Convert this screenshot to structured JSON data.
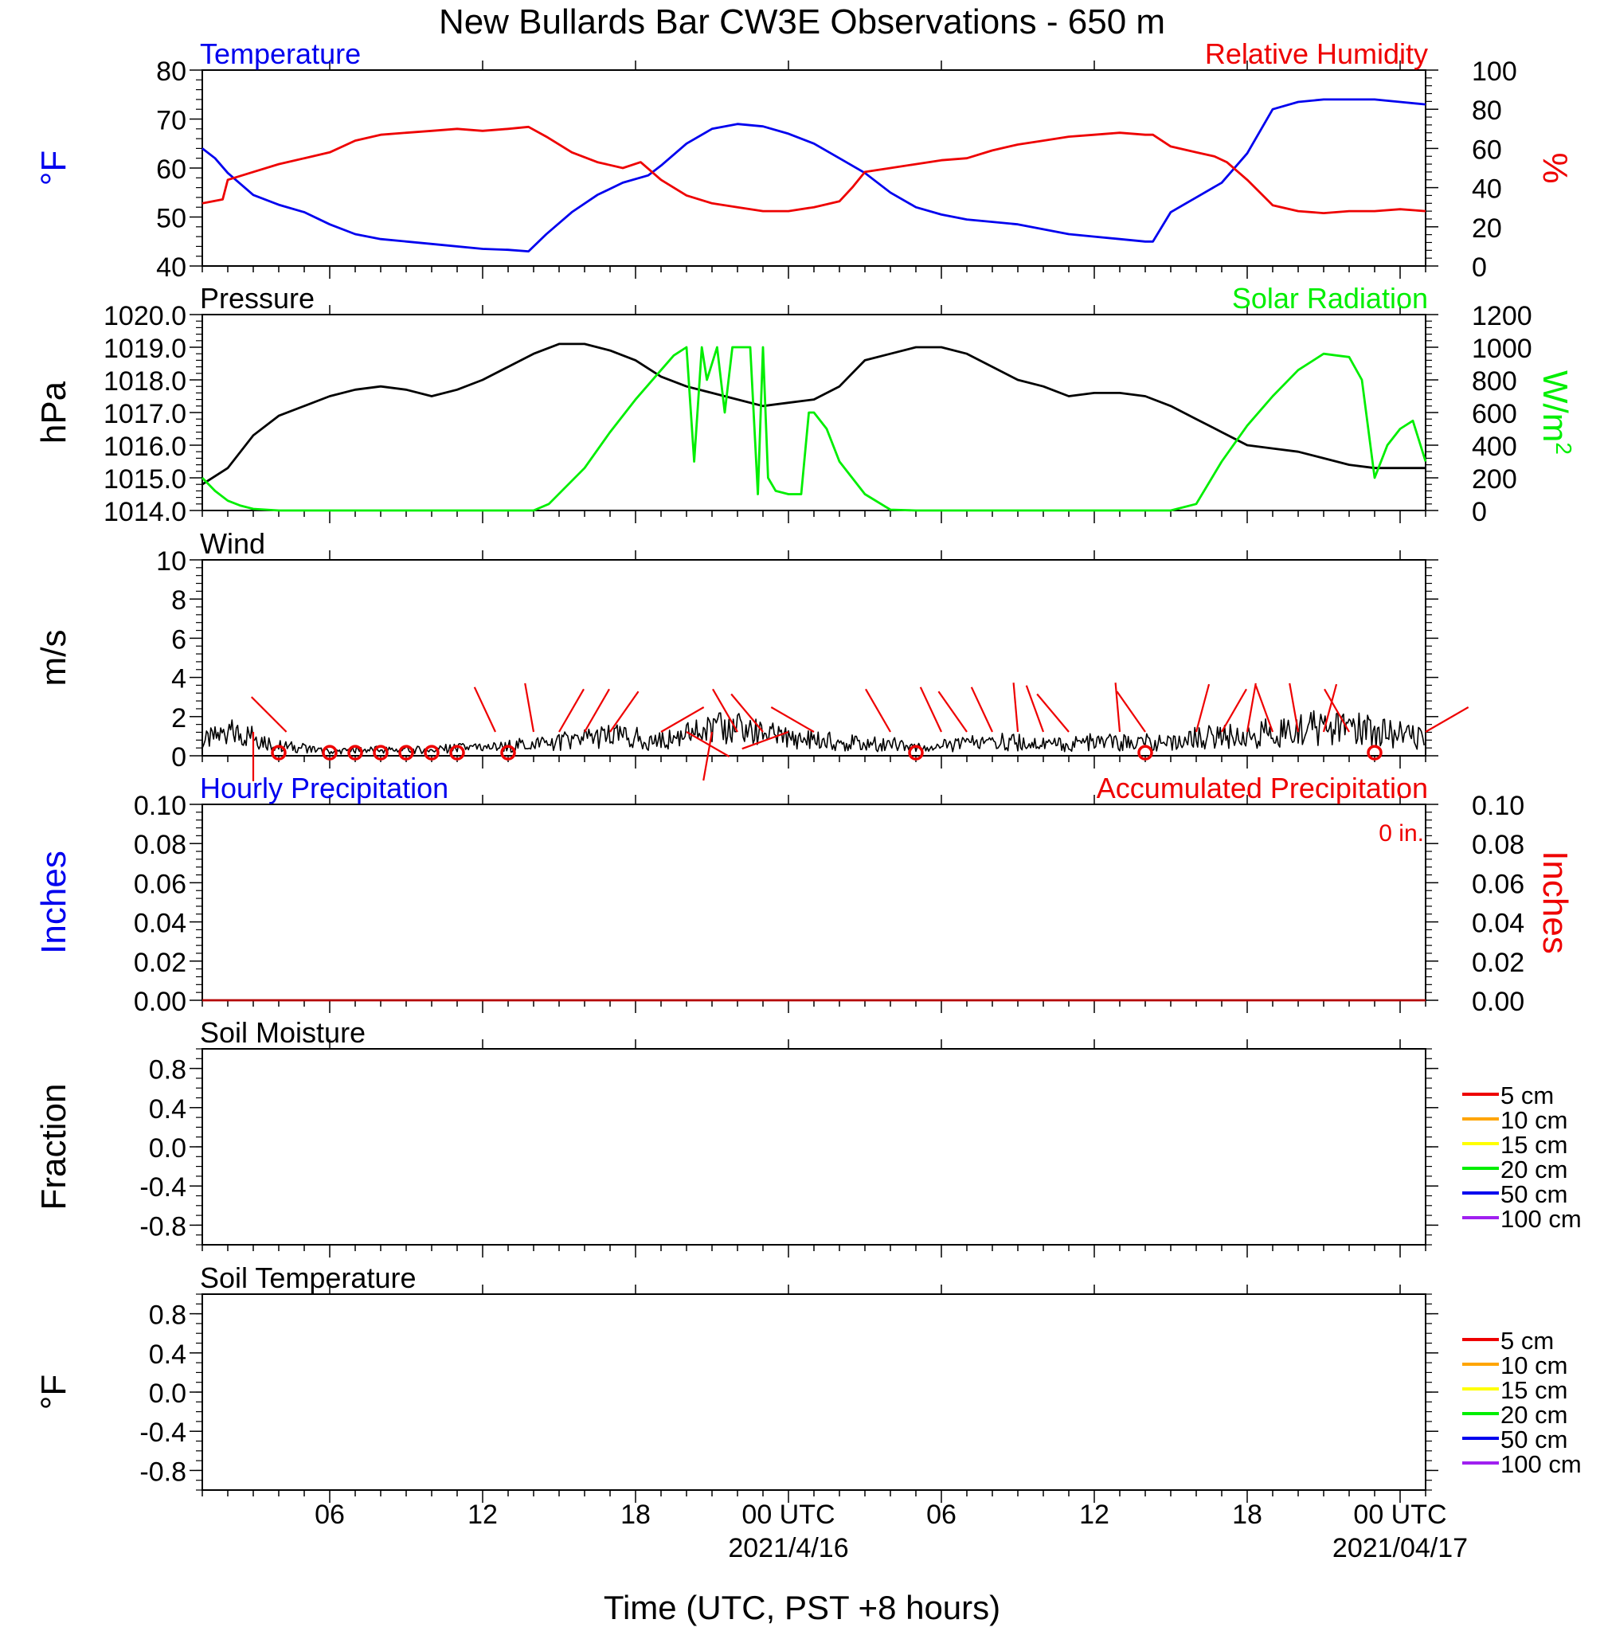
{
  "title": "New Bullards Bar CW3E Observations - 650 m",
  "xlabel": "Time (UTC, PST +8 hours)",
  "x_ticks": [
    {
      "label": "06",
      "hour": 6,
      "date": ""
    },
    {
      "label": "12",
      "hour": 12,
      "date": ""
    },
    {
      "label": "18",
      "hour": 18,
      "date": ""
    },
    {
      "label": "00 UTC",
      "hour": 24,
      "date": "2021/4/16"
    },
    {
      "label": "06",
      "hour": 30,
      "date": ""
    },
    {
      "label": "12",
      "hour": 36,
      "date": ""
    },
    {
      "label": "18",
      "hour": 42,
      "date": ""
    },
    {
      "label": "00 UTC",
      "hour": 48,
      "date": "2021/04/17"
    }
  ],
  "colors": {
    "temperature": "#0000ee",
    "humidity": "#ee0000",
    "pressure": "#000000",
    "solar": "#00ee00",
    "wind": "#000000",
    "wind_barbs": "#ee0000",
    "precip": "#b40000"
  },
  "chart_data": [
    {
      "id": "temp-rh",
      "type": "line",
      "title_left": "Temperature",
      "title_right": "Relative Humidity",
      "ylabel_left": "°F",
      "ylabel_right": "%",
      "ylim_left": [
        40,
        80
      ],
      "ylim_right": [
        0,
        100
      ],
      "yticks_left": [
        "40",
        "50",
        "60",
        "70",
        "80"
      ],
      "yticks_right": [
        "0",
        "20",
        "40",
        "60",
        "80",
        "100"
      ],
      "xlim_hours": [
        1,
        49
      ],
      "series": [
        {
          "name": "Temperature",
          "axis": "left",
          "color": "#0000ee",
          "x": [
            1,
            1.5,
            2,
            3,
            4,
            5,
            6,
            7,
            8,
            10,
            12,
            13,
            13.8,
            14.5,
            15.5,
            16.5,
            17.5,
            18.5,
            19,
            20,
            21,
            22,
            23,
            24,
            25,
            26,
            27,
            28,
            29,
            30,
            31,
            32,
            33,
            34,
            35,
            36,
            37,
            38,
            38.3,
            39,
            40,
            41,
            42,
            43,
            44,
            45,
            46,
            47,
            48,
            49
          ],
          "y": [
            64,
            62,
            59,
            54.5,
            52.5,
            51,
            48.5,
            46.5,
            45.5,
            44.5,
            43.5,
            43.3,
            43,
            46.5,
            51,
            54.5,
            57,
            58.5,
            60.5,
            65,
            68,
            69,
            68.5,
            67,
            65,
            62,
            59,
            55,
            52,
            50.5,
            49.5,
            49,
            48.5,
            47.5,
            46.5,
            46,
            45.5,
            45,
            45,
            51,
            54,
            57,
            63,
            72,
            73.5,
            74,
            74,
            74,
            73.5,
            73
          ]
        },
        {
          "name": "Relative Humidity",
          "axis": "right",
          "color": "#ee0000",
          "x": [
            1,
            1.8,
            2,
            3,
            4,
            5,
            6,
            7,
            8,
            9,
            10,
            11,
            12,
            13,
            13.8,
            14.5,
            15.5,
            16.5,
            17.5,
            18.2,
            19,
            20,
            21,
            22,
            23,
            24,
            25,
            26,
            26.5,
            27,
            28,
            29,
            30,
            31,
            32,
            33,
            34,
            35,
            36,
            37,
            38,
            38.3,
            39,
            40,
            40.7,
            41.2,
            42,
            43,
            44,
            45,
            46,
            47,
            48,
            49
          ],
          "y": [
            32,
            34,
            44,
            48,
            52,
            55,
            58,
            64,
            67,
            68,
            69,
            70,
            69,
            70,
            71,
            66,
            58,
            53,
            50,
            53,
            44,
            36,
            32,
            30,
            28,
            28,
            30,
            33,
            40,
            48,
            50,
            52,
            54,
            55,
            59,
            62,
            64,
            66,
            67,
            68,
            67,
            67,
            61,
            58,
            56,
            53,
            44,
            31,
            28,
            27,
            28,
            28,
            29,
            28
          ]
        }
      ]
    },
    {
      "id": "pressure-solar",
      "type": "line",
      "title_left": "Pressure",
      "title_right": "Solar Radiation",
      "ylabel_left": "hPa",
      "ylabel_right": "W/m",
      "ylabel_right_sup": "2",
      "ylim_left": [
        1014,
        1020
      ],
      "ylim_right": [
        0,
        1200
      ],
      "yticks_left": [
        "1014.0",
        "1015.0",
        "1016.0",
        "1017.0",
        "1018.0",
        "1019.0",
        "1020.0"
      ],
      "yticks_right": [
        "0",
        "200",
        "400",
        "600",
        "800",
        "1000",
        "1200"
      ],
      "xlim_hours": [
        1,
        49
      ],
      "series": [
        {
          "name": "Pressure",
          "axis": "left",
          "color": "#000000",
          "x": [
            1,
            2,
            3,
            4,
            5,
            6,
            7,
            8,
            9,
            10,
            11,
            12,
            13,
            14,
            15,
            16,
            17,
            18,
            19,
            20,
            21,
            22,
            23,
            24,
            25,
            26,
            27,
            28,
            29,
            30,
            31,
            32,
            33,
            34,
            35,
            36,
            37,
            38,
            39,
            40,
            41,
            42,
            43,
            44,
            45,
            46,
            47,
            48,
            49
          ],
          "y": [
            1014.8,
            1015.3,
            1016.3,
            1016.9,
            1017.2,
            1017.5,
            1017.7,
            1017.8,
            1017.7,
            1017.5,
            1017.7,
            1018.0,
            1018.4,
            1018.8,
            1019.1,
            1019.1,
            1018.9,
            1018.6,
            1018.1,
            1017.8,
            1017.6,
            1017.4,
            1017.2,
            1017.3,
            1017.4,
            1017.8,
            1018.6,
            1018.8,
            1019.0,
            1019.0,
            1018.8,
            1018.4,
            1018.0,
            1017.8,
            1017.5,
            1017.6,
            1017.6,
            1017.5,
            1017.2,
            1016.8,
            1016.4,
            1016.0,
            1015.9,
            1015.8,
            1015.6,
            1015.4,
            1015.3,
            1015.3,
            1015.3
          ]
        },
        {
          "name": "Solar Radiation",
          "axis": "right",
          "color": "#00ee00",
          "x": [
            1,
            1.5,
            2,
            2.5,
            3,
            4,
            5,
            6,
            7,
            8,
            9,
            10,
            11,
            12,
            13,
            14,
            14.6,
            16,
            17,
            18,
            19,
            19.5,
            20,
            20.3,
            20.6,
            20.8,
            21.2,
            21.5,
            21.8,
            22,
            22.2,
            22.5,
            22.8,
            23,
            23.2,
            23.5,
            24,
            24.5,
            24.8,
            25,
            25.5,
            26,
            27,
            28,
            29,
            30,
            31,
            32,
            33,
            34,
            35,
            36,
            37,
            38,
            38.3,
            39,
            40,
            41,
            42,
            43,
            44,
            45,
            45.5,
            46,
            46.5,
            47,
            47.5,
            48,
            48.5,
            49
          ],
          "y": [
            200,
            120,
            60,
            30,
            10,
            0,
            0,
            0,
            0,
            0,
            0,
            0,
            0,
            0,
            0,
            0,
            40,
            260,
            480,
            680,
            860,
            950,
            1000,
            300,
            1000,
            800,
            1000,
            600,
            1000,
            1000,
            1000,
            1000,
            100,
            1000,
            200,
            120,
            100,
            100,
            600,
            600,
            500,
            300,
            100,
            5,
            0,
            0,
            0,
            0,
            0,
            0,
            0,
            0,
            0,
            0,
            0,
            0,
            40,
            300,
            520,
            700,
            860,
            960,
            950,
            940,
            800,
            200,
            400,
            500,
            550,
            300
          ]
        }
      ]
    },
    {
      "id": "wind",
      "type": "line",
      "title_left": "Wind",
      "ylabel_left": "m/s",
      "ylim_left": [
        0,
        10
      ],
      "yticks_left": [
        "0",
        "2",
        "4",
        "6",
        "8",
        "10"
      ],
      "xlim_hours": [
        1,
        49
      ],
      "series": [
        {
          "name": "Wind speed",
          "axis": "left",
          "color": "#000000",
          "x": [
            1,
            2,
            3,
            4,
            5,
            6,
            7,
            8,
            9,
            10,
            11,
            12,
            13,
            14,
            15,
            16,
            17,
            18,
            19,
            20,
            21,
            22,
            23,
            24,
            25,
            26,
            27,
            28,
            29,
            30,
            31,
            32,
            33,
            34,
            35,
            36,
            37,
            38,
            39,
            40,
            41,
            42,
            43,
            44,
            45,
            46,
            47,
            48,
            49
          ],
          "y": [
            0.7,
            1.2,
            1.0,
            0.5,
            0.4,
            0.2,
            0.3,
            0.3,
            0.3,
            0.3,
            0.4,
            0.4,
            0.5,
            0.6,
            0.7,
            0.9,
            1.0,
            0.9,
            0.7,
            1.1,
            1.3,
            1.4,
            1.1,
            0.9,
            0.8,
            0.7,
            0.6,
            0.6,
            0.5,
            0.5,
            0.6,
            0.7,
            0.7,
            0.6,
            0.6,
            0.7,
            0.7,
            0.7,
            0.6,
            0.9,
            1.0,
            1.0,
            1.2,
            1.4,
            1.4,
            1.4,
            1.2,
            1.1,
            0.8
          ]
        }
      ],
      "calm_hours": [
        4,
        6,
        7,
        8,
        9,
        10,
        11,
        13,
        29,
        38,
        47
      ],
      "barbs": [
        {
          "hour": 3,
          "dir": 180
        },
        {
          "hour": 4.3,
          "dir": 315
        },
        {
          "hour": 12.5,
          "dir": 335
        },
        {
          "hour": 14,
          "dir": 350
        },
        {
          "hour": 15,
          "dir": 30
        },
        {
          "hour": 16,
          "dir": 30
        },
        {
          "hour": 17,
          "dir": 35
        },
        {
          "hour": 19,
          "dir": 60
        },
        {
          "hour": 20,
          "dir": 120
        },
        {
          "hour": 21,
          "dir": 190
        },
        {
          "hour": 22,
          "dir": 330
        },
        {
          "hour": 23,
          "dir": 320
        },
        {
          "hour": 24,
          "dir": 250
        },
        {
          "hour": 25,
          "dir": 300
        },
        {
          "hour": 28,
          "dir": 330
        },
        {
          "hour": 30,
          "dir": 335
        },
        {
          "hour": 31,
          "dir": 325
        },
        {
          "hour": 32,
          "dir": 335
        },
        {
          "hour": 33,
          "dir": 355
        },
        {
          "hour": 34,
          "dir": 340
        },
        {
          "hour": 35,
          "dir": 320
        },
        {
          "hour": 37,
          "dir": 355
        },
        {
          "hour": 38,
          "dir": 325
        },
        {
          "hour": 40,
          "dir": 15
        },
        {
          "hour": 41,
          "dir": 30
        },
        {
          "hour": 42,
          "dir": 10
        },
        {
          "hour": 43,
          "dir": 340
        },
        {
          "hour": 44,
          "dir": 350
        },
        {
          "hour": 45,
          "dir": 15
        },
        {
          "hour": 46,
          "dir": 330
        },
        {
          "hour": 49,
          "dir": 60
        }
      ]
    },
    {
      "id": "precip",
      "type": "line",
      "title_left": "Hourly Precipitation",
      "title_right": "Accumulated Precipitation",
      "annotation": "0 in.",
      "ylabel_left": "Inches",
      "ylabel_right": "Inches",
      "ylim_left": [
        0,
        0.1
      ],
      "ylim_right": [
        0,
        0.1
      ],
      "yticks_left": [
        "0.00",
        "0.02",
        "0.04",
        "0.06",
        "0.08",
        "0.10"
      ],
      "yticks_right": [
        "0.00",
        "0.02",
        "0.04",
        "0.06",
        "0.08",
        "0.10"
      ],
      "xlim_hours": [
        1,
        49
      ],
      "series": [
        {
          "name": "Accumulated Precipitation",
          "axis": "right",
          "color": "#b40000",
          "x": [
            1,
            49
          ],
          "y": [
            0,
            0
          ]
        }
      ]
    },
    {
      "id": "soil-moisture",
      "type": "line",
      "title_left": "Soil Moisture",
      "ylabel_left": "Fraction",
      "ylim_left": [
        -1,
        1
      ],
      "yticks_left": [
        "-0.8",
        "-0.4",
        "0.0",
        "0.4",
        "0.8"
      ],
      "ytick_values": [
        -0.8,
        -0.4,
        0.0,
        0.4,
        0.8
      ],
      "xlim_hours": [
        1,
        49
      ],
      "legend": [
        {
          "label": "5 cm",
          "color": "#ee0000"
        },
        {
          "label": "10 cm",
          "color": "#ffa500"
        },
        {
          "label": "15 cm",
          "color": "#ffff00"
        },
        {
          "label": "20 cm",
          "color": "#00ee00"
        },
        {
          "label": "50 cm",
          "color": "#0000ee"
        },
        {
          "label": "100 cm",
          "color": "#a020f0"
        }
      ]
    },
    {
      "id": "soil-temp",
      "type": "line",
      "title_left": "Soil Temperature",
      "ylabel_left": "°F",
      "ylim_left": [
        -1,
        1
      ],
      "yticks_left": [
        "-0.8",
        "-0.4",
        "0.0",
        "0.4",
        "0.8"
      ],
      "ytick_values": [
        -0.8,
        -0.4,
        0.0,
        0.4,
        0.8
      ],
      "xlim_hours": [
        1,
        49
      ],
      "legend": [
        {
          "label": "5 cm",
          "color": "#ee0000"
        },
        {
          "label": "10 cm",
          "color": "#ffa500"
        },
        {
          "label": "15 cm",
          "color": "#ffff00"
        },
        {
          "label": "20 cm",
          "color": "#00ee00"
        },
        {
          "label": "50 cm",
          "color": "#0000ee"
        },
        {
          "label": "100 cm",
          "color": "#a020f0"
        }
      ]
    }
  ]
}
